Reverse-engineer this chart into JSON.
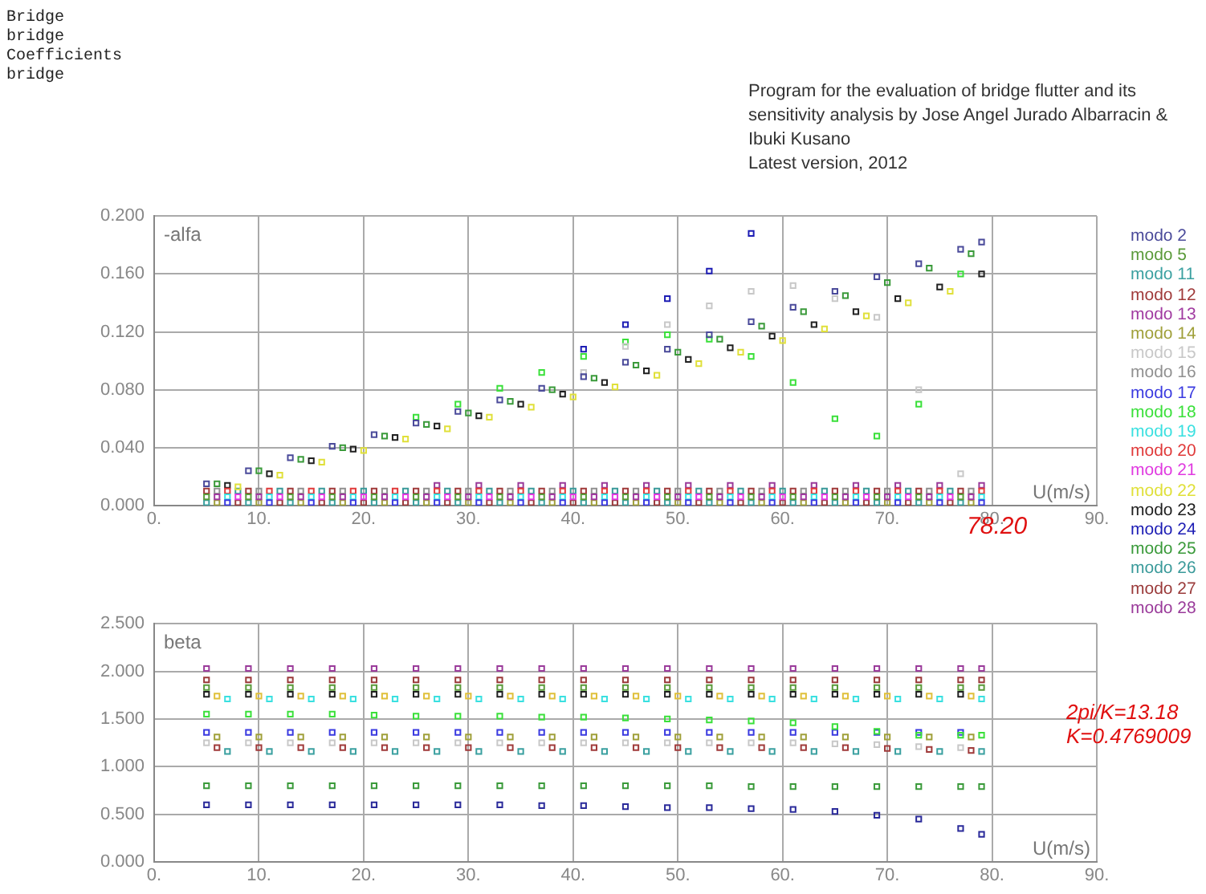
{
  "chart_data": [
    {
      "type": "scatter",
      "title": "Program for the evaluation of bridge flutter and its sensitivity analysis by Jose Angel Jurado Albarracin & Ibuki Kusano",
      "subtitle": "Latest version, 2012",
      "ylabel": "-alfa",
      "xlabel": "U(m/s)",
      "marker": "square",
      "grid": true,
      "legend": "right",
      "annotations": [
        "Bridge",
        "bridge",
        "Coefficients",
        "bridge",
        {
          "text": "78.20",
          "x": 78.2,
          "y": 0
        }
      ],
      "xlim": [
        0,
        90
      ],
      "xticks": [
        {
          "value": 0,
          "label": "0."
        },
        {
          "value": 10,
          "label": "10."
        },
        {
          "value": 20,
          "label": "20."
        },
        {
          "value": 30,
          "label": "30."
        },
        {
          "value": 40,
          "label": "40."
        },
        {
          "value": 50,
          "label": "50."
        },
        {
          "value": 60,
          "label": "60."
        },
        {
          "value": 70,
          "label": "70."
        },
        {
          "value": 80,
          "label": "80."
        },
        {
          "value": 90,
          "label": "90."
        }
      ],
      "ylim": [
        0,
        0.2
      ],
      "yticks": [
        {
          "value": 0,
          "label": "0.000"
        },
        {
          "value": 0.04,
          "label": "0.040"
        },
        {
          "value": 0.08,
          "label": "0.080"
        },
        {
          "value": 0.12,
          "label": "0.120"
        },
        {
          "value": 0.16,
          "label": "0.160"
        },
        {
          "value": 0.2,
          "label": "0.200"
        }
      ],
      "x": [
        5,
        9,
        13,
        17,
        21,
        25,
        29,
        33,
        37,
        41,
        45,
        49,
        53,
        57,
        61,
        65,
        69,
        73,
        77,
        79
      ],
      "series": [
        {
          "name": "modo 2",
          "color": "#4a4a9a",
          "values": [
            0.015,
            0.024,
            0.033,
            0.041,
            0.049,
            0.057,
            0.065,
            0.073,
            0.081,
            0.089,
            0.099,
            0.108,
            0.118,
            0.127,
            0.137,
            0.148,
            0.158,
            0.167,
            0.177,
            0.182
          ]
        },
        {
          "name": "modo 5",
          "color": "#5a9a3a",
          "x": [
            5,
            9,
            13,
            17,
            21,
            25,
            29,
            33,
            37,
            41,
            45,
            49,
            53,
            57,
            61,
            65,
            69,
            73,
            77
          ],
          "values": [
            0.006,
            0.006,
            0.006,
            0.006,
            0.006,
            0.006,
            0.006,
            0.006,
            0.006,
            0.006,
            0.006,
            0.006,
            0.006,
            0.006,
            0.006,
            0.006,
            0.006,
            0.006,
            0.006
          ]
        },
        {
          "name": "modo 11",
          "color": "#3aa0a0",
          "x": [
            5,
            9,
            13,
            17,
            21,
            25,
            29,
            33,
            37,
            41,
            45,
            49,
            53,
            57,
            61,
            65,
            69,
            73,
            77
          ],
          "values": [
            0.002,
            0.002,
            0.002,
            0.002,
            0.002,
            0.002,
            0.002,
            0.002,
            0.002,
            0.002,
            0.002,
            0.002,
            0.002,
            0.002,
            0.002,
            0.002,
            0.002,
            0.002,
            0.002
          ]
        },
        {
          "name": "modo 12",
          "color": "#a03a3a",
          "x": [
            5,
            9,
            13,
            17,
            21,
            25,
            29,
            33,
            37,
            41,
            45,
            49,
            53,
            57,
            61,
            65,
            69,
            73,
            77
          ],
          "values": [
            0.01,
            0.01,
            0.01,
            0.01,
            0.01,
            0.01,
            0.01,
            0.01,
            0.01,
            0.01,
            0.01,
            0.01,
            0.01,
            0.01,
            0.01,
            0.01,
            0.01,
            0.01,
            0.01
          ]
        },
        {
          "name": "modo 13",
          "color": "#a03aa0",
          "x": [
            6,
            10,
            14,
            18,
            22,
            26,
            30,
            34,
            38,
            42,
            46,
            50,
            54,
            58,
            62,
            66,
            70,
            74,
            78
          ],
          "values": [
            0.006,
            0.006,
            0.006,
            0.006,
            0.006,
            0.006,
            0.006,
            0.006,
            0.006,
            0.006,
            0.006,
            0.006,
            0.006,
            0.006,
            0.006,
            0.006,
            0.006,
            0.006,
            0.006
          ]
        },
        {
          "name": "modo 14",
          "color": "#a0a03a",
          "x": [
            6,
            10,
            14,
            18,
            22,
            26,
            30,
            34,
            38,
            42,
            46,
            50,
            54,
            58,
            62,
            66,
            70,
            74,
            78
          ],
          "values": [
            0.002,
            0.002,
            0.002,
            0.002,
            0.002,
            0.002,
            0.002,
            0.002,
            0.002,
            0.002,
            0.002,
            0.002,
            0.002,
            0.002,
            0.002,
            0.002,
            0.002,
            0.002,
            0.002
          ]
        },
        {
          "name": "modo 15",
          "color": "#c8c8c8",
          "values": [
            null,
            null,
            null,
            null,
            null,
            null,
            null,
            null,
            null,
            0.092,
            0.11,
            0.125,
            0.138,
            0.148,
            0.152,
            0.143,
            0.13,
            0.08,
            0.022,
            null
          ]
        },
        {
          "name": "modo 16",
          "color": "#909090",
          "x": [
            6,
            10,
            14,
            18,
            22,
            26,
            30,
            34,
            38,
            42,
            46,
            50,
            54,
            58,
            62,
            66,
            70,
            74,
            78
          ],
          "values": [
            0.01,
            0.01,
            0.01,
            0.01,
            0.01,
            0.01,
            0.01,
            0.01,
            0.01,
            0.01,
            0.01,
            0.01,
            0.01,
            0.01,
            0.01,
            0.01,
            0.01,
            0.01,
            0.01
          ]
        },
        {
          "name": "modo 17",
          "color": "#3a3ae0",
          "x": [
            7,
            11,
            15,
            19,
            23,
            27,
            31,
            35,
            39,
            43,
            47,
            51,
            55,
            59,
            63,
            67,
            71,
            75,
            79
          ],
          "values": [
            0.002,
            0.002,
            0.002,
            0.002,
            0.002,
            0.002,
            0.002,
            0.002,
            0.002,
            0.002,
            0.002,
            0.002,
            0.002,
            0.002,
            0.002,
            0.002,
            0.002,
            0.002,
            0.002
          ]
        },
        {
          "name": "modo 18",
          "color": "#3ae03a",
          "values": [
            null,
            null,
            null,
            null,
            null,
            0.061,
            0.07,
            0.081,
            0.092,
            0.103,
            0.113,
            0.118,
            0.115,
            0.103,
            0.085,
            0.06,
            0.048,
            0.07,
            0.16,
            null
          ]
        },
        {
          "name": "modo 19",
          "color": "#3ae0e0",
          "x": [
            7,
            11,
            15,
            19,
            23,
            27,
            31,
            35,
            39,
            43,
            47,
            51,
            55,
            59,
            63,
            67,
            71,
            75,
            79
          ],
          "values": [
            0.006,
            0.006,
            0.006,
            0.006,
            0.006,
            0.006,
            0.006,
            0.006,
            0.006,
            0.006,
            0.006,
            0.006,
            0.006,
            0.006,
            0.006,
            0.006,
            0.006,
            0.006,
            0.006
          ]
        },
        {
          "name": "modo 20",
          "color": "#e03a3a",
          "x": [
            7,
            11,
            15,
            19,
            23,
            27,
            31,
            35,
            39,
            43,
            47,
            51,
            55,
            59,
            63,
            67,
            71,
            75,
            79
          ],
          "values": [
            0.01,
            0.01,
            0.01,
            0.01,
            0.01,
            0.01,
            0.01,
            0.01,
            0.01,
            0.01,
            0.01,
            0.01,
            0.01,
            0.01,
            0.01,
            0.01,
            0.01,
            0.01,
            0.01
          ]
        },
        {
          "name": "modo 21",
          "color": "#e03ae0",
          "x": [
            8,
            12,
            16,
            20,
            24,
            28,
            32,
            36,
            40,
            44,
            48,
            52,
            56,
            60,
            64,
            68,
            72,
            76
          ],
          "values": [
            0.006,
            0.006,
            0.006,
            0.006,
            0.006,
            0.006,
            0.006,
            0.006,
            0.006,
            0.006,
            0.006,
            0.006,
            0.006,
            0.006,
            0.006,
            0.006,
            0.006,
            0.006
          ]
        },
        {
          "name": "modo 22",
          "color": "#e0e03a",
          "x": [
            8,
            12,
            16,
            20,
            24,
            28,
            32,
            36,
            40,
            44,
            48,
            52,
            56,
            60,
            64,
            68,
            72,
            76
          ],
          "values": [
            0.013,
            0.021,
            0.03,
            0.038,
            0.046,
            0.053,
            0.061,
            0.068,
            0.075,
            0.082,
            0.09,
            0.098,
            0.106,
            0.114,
            0.122,
            0.131,
            0.14,
            0.148
          ]
        },
        {
          "name": "modo 23",
          "color": "#202020",
          "x": [
            7,
            11,
            15,
            19,
            23,
            27,
            31,
            35,
            39,
            43,
            47,
            51,
            55,
            59,
            63,
            67,
            71,
            75,
            79
          ],
          "values": [
            0.014,
            0.022,
            0.031,
            0.039,
            0.047,
            0.055,
            0.062,
            0.07,
            0.077,
            0.085,
            0.093,
            0.101,
            0.109,
            0.117,
            0.125,
            0.134,
            0.143,
            0.151,
            0.16
          ]
        },
        {
          "name": "modo 24",
          "color": "#1c1cb4",
          "values": [
            null,
            null,
            null,
            null,
            null,
            null,
            null,
            null,
            null,
            0.108,
            0.125,
            0.143,
            0.162,
            0.188,
            null,
            null,
            null,
            null,
            null,
            null
          ]
        },
        {
          "name": "modo 25",
          "color": "#3a9a3a",
          "x": [
            6,
            10,
            14,
            18,
            22,
            26,
            30,
            34,
            38,
            42,
            46,
            50,
            54,
            58,
            62,
            66,
            70,
            74,
            78
          ],
          "values": [
            0.015,
            0.024,
            0.032,
            0.04,
            0.048,
            0.056,
            0.064,
            0.072,
            0.08,
            0.088,
            0.097,
            0.106,
            0.115,
            0.124,
            0.134,
            0.145,
            0.154,
            0.164,
            0.174
          ]
        },
        {
          "name": "modo 26",
          "color": "#3a9a9a",
          "x": [
            8,
            12,
            16,
            20,
            24,
            28,
            32,
            36,
            40,
            44,
            48,
            52,
            56,
            60,
            64,
            68,
            72,
            76
          ],
          "values": [
            0.01,
            0.01,
            0.01,
            0.01,
            0.01,
            0.01,
            0.01,
            0.01,
            0.01,
            0.01,
            0.01,
            0.01,
            0.01,
            0.01,
            0.01,
            0.01,
            0.01,
            0.01
          ]
        },
        {
          "name": "modo 27",
          "color": "#9a3a3a",
          "x": [
            8,
            12,
            16,
            20,
            24,
            28,
            32,
            36,
            40,
            44,
            48,
            52,
            56,
            60,
            64,
            68,
            72,
            76
          ],
          "values": [
            0.002,
            0.002,
            0.002,
            0.002,
            0.002,
            0.002,
            0.002,
            0.002,
            0.002,
            0.002,
            0.002,
            0.002,
            0.002,
            0.002,
            0.002,
            0.002,
            0.002,
            0.002
          ]
        },
        {
          "name": "modo 28",
          "color": "#9a3a9a",
          "x": [
            27,
            31,
            35,
            39,
            43,
            47,
            51,
            55,
            59,
            63,
            67,
            71,
            75,
            79
          ],
          "values": [
            0.014,
            0.014,
            0.014,
            0.014,
            0.014,
            0.014,
            0.014,
            0.014,
            0.014,
            0.014,
            0.014,
            0.014,
            0.014,
            0.014
          ]
        }
      ]
    },
    {
      "type": "scatter",
      "ylabel": "beta",
      "xlabel": "U(m/s)",
      "marker": "square",
      "grid": true,
      "annotations": [
        "2pi/K=13.18",
        "K=0.4769009"
      ],
      "xlim": [
        0,
        90
      ],
      "xticks": [
        {
          "value": 0,
          "label": "0."
        },
        {
          "value": 10,
          "label": "10."
        },
        {
          "value": 20,
          "label": "20."
        },
        {
          "value": 30,
          "label": "30."
        },
        {
          "value": 40,
          "label": "40."
        },
        {
          "value": 50,
          "label": "50."
        },
        {
          "value": 60,
          "label": "60."
        },
        {
          "value": 70,
          "label": "70."
        },
        {
          "value": 80,
          "label": "80."
        },
        {
          "value": 90,
          "label": "90."
        }
      ],
      "ylim": [
        0,
        2.5
      ],
      "yticks": [
        {
          "value": 0,
          "label": "0.000"
        },
        {
          "value": 0.5,
          "label": "0.500"
        },
        {
          "value": 1,
          "label": "1.000"
        },
        {
          "value": 1.5,
          "label": "1.500"
        },
        {
          "value": 2,
          "label": "2.000"
        },
        {
          "value": 2.5,
          "label": "2.500"
        }
      ],
      "x": [
        5,
        9,
        13,
        17,
        21,
        25,
        29,
        33,
        37,
        41,
        45,
        49,
        53,
        57,
        61,
        65,
        69,
        73,
        77,
        79
      ],
      "series": [
        {
          "color": "#9a3a9a",
          "values": [
            2.03,
            2.03,
            2.03,
            2.03,
            2.03,
            2.03,
            2.03,
            2.03,
            2.03,
            2.03,
            2.03,
            2.03,
            2.03,
            2.03,
            2.03,
            2.03,
            2.03,
            2.03,
            2.03,
            2.03
          ]
        },
        {
          "color": "#9a3a3a",
          "values": [
            1.91,
            1.91,
            1.91,
            1.91,
            1.91,
            1.91,
            1.91,
            1.91,
            1.91,
            1.91,
            1.91,
            1.91,
            1.91,
            1.91,
            1.91,
            1.91,
            1.91,
            1.91,
            1.91,
            1.91
          ]
        },
        {
          "color": "#5a9a3a",
          "values": [
            1.83,
            1.83,
            1.83,
            1.83,
            1.83,
            1.83,
            1.83,
            1.83,
            1.83,
            1.83,
            1.83,
            1.83,
            1.83,
            1.83,
            1.83,
            1.83,
            1.83,
            1.83,
            1.83,
            1.83
          ]
        },
        {
          "color": "#202020",
          "x": [
            5,
            9,
            13,
            17,
            21,
            25,
            29,
            33,
            37,
            41,
            45,
            49,
            53,
            57,
            61,
            65,
            69,
            73,
            77
          ],
          "values": [
            1.76,
            1.76,
            1.76,
            1.76,
            1.76,
            1.76,
            1.76,
            1.76,
            1.76,
            1.76,
            1.76,
            1.76,
            1.76,
            1.76,
            1.76,
            1.76,
            1.76,
            1.76,
            1.76
          ]
        },
        {
          "color": "#e0c03a",
          "x": [
            6,
            10,
            14,
            18,
            22,
            26,
            30,
            34,
            38,
            42,
            46,
            50,
            54,
            58,
            62,
            66,
            70,
            74,
            78
          ],
          "values": [
            1.74,
            1.74,
            1.74,
            1.74,
            1.74,
            1.74,
            1.74,
            1.74,
            1.74,
            1.74,
            1.74,
            1.74,
            1.74,
            1.74,
            1.74,
            1.74,
            1.74,
            1.74,
            1.74
          ]
        },
        {
          "color": "#3ae0e0",
          "x": [
            7,
            11,
            15,
            19,
            23,
            27,
            31,
            35,
            39,
            43,
            47,
            51,
            55,
            59,
            63,
            67,
            71,
            75,
            79
          ],
          "values": [
            1.71,
            1.71,
            1.71,
            1.71,
            1.71,
            1.71,
            1.71,
            1.71,
            1.71,
            1.71,
            1.71,
            1.71,
            1.71,
            1.71,
            1.71,
            1.71,
            1.71,
            1.71,
            1.71
          ]
        },
        {
          "color": "#3ae03a",
          "values": [
            1.55,
            1.55,
            1.55,
            1.55,
            1.54,
            1.53,
            1.53,
            1.53,
            1.52,
            1.52,
            1.51,
            1.5,
            1.49,
            1.48,
            1.46,
            1.42,
            1.37,
            1.33,
            1.33,
            1.33
          ]
        },
        {
          "color": "#3a3ae0",
          "x": [
            5,
            9,
            13,
            17,
            21,
            25,
            29,
            33,
            37,
            41,
            45,
            49,
            53,
            57,
            61,
            65,
            69,
            73,
            77
          ],
          "values": [
            1.36,
            1.36,
            1.36,
            1.36,
            1.36,
            1.36,
            1.36,
            1.36,
            1.36,
            1.36,
            1.36,
            1.36,
            1.36,
            1.36,
            1.36,
            1.36,
            1.36,
            1.36,
            1.36
          ]
        },
        {
          "color": "#a0a03a",
          "x": [
            6,
            10,
            14,
            18,
            22,
            26,
            30,
            34,
            38,
            42,
            46,
            50,
            54,
            58,
            62,
            66,
            70,
            74,
            78
          ],
          "values": [
            1.31,
            1.31,
            1.31,
            1.31,
            1.31,
            1.31,
            1.31,
            1.31,
            1.31,
            1.31,
            1.31,
            1.31,
            1.31,
            1.31,
            1.31,
            1.31,
            1.31,
            1.31,
            1.31
          ]
        },
        {
          "color": "#c8c8c8",
          "x": [
            5,
            9,
            13,
            17,
            21,
            25,
            29,
            33,
            37,
            41,
            45,
            49,
            53,
            57,
            61,
            65,
            69,
            73,
            77
          ],
          "values": [
            1.25,
            1.25,
            1.25,
            1.25,
            1.25,
            1.25,
            1.25,
            1.25,
            1.25,
            1.25,
            1.25,
            1.25,
            1.25,
            1.25,
            1.25,
            1.24,
            1.23,
            1.21,
            1.2
          ]
        },
        {
          "color": "#a03a3a",
          "x": [
            6,
            10,
            14,
            18,
            22,
            26,
            30,
            34,
            38,
            42,
            46,
            50,
            54,
            58,
            62,
            66,
            70,
            74,
            78
          ],
          "values": [
            1.2,
            1.2,
            1.2,
            1.2,
            1.2,
            1.2,
            1.2,
            1.2,
            1.2,
            1.2,
            1.2,
            1.2,
            1.2,
            1.2,
            1.2,
            1.2,
            1.19,
            1.18,
            1.17
          ]
        },
        {
          "color": "#3aa0a0",
          "x": [
            7,
            11,
            15,
            19,
            23,
            27,
            31,
            35,
            39,
            43,
            47,
            51,
            55,
            59,
            63,
            67,
            71,
            75,
            79
          ],
          "values": [
            1.16,
            1.16,
            1.16,
            1.16,
            1.16,
            1.16,
            1.16,
            1.16,
            1.16,
            1.16,
            1.16,
            1.16,
            1.16,
            1.16,
            1.16,
            1.16,
            1.16,
            1.16,
            1.16
          ]
        },
        {
          "color": "#3a9a3a",
          "values": [
            0.8,
            0.8,
            0.8,
            0.8,
            0.8,
            0.8,
            0.8,
            0.8,
            0.8,
            0.8,
            0.8,
            0.8,
            0.8,
            0.79,
            0.79,
            0.79,
            0.79,
            0.79,
            0.79,
            0.79
          ]
        },
        {
          "color": "#2a2a9a",
          "values": [
            0.6,
            0.6,
            0.6,
            0.6,
            0.6,
            0.6,
            0.6,
            0.6,
            0.59,
            0.59,
            0.58,
            0.57,
            0.57,
            0.56,
            0.55,
            0.53,
            0.49,
            0.45,
            0.35,
            0.29
          ]
        }
      ]
    }
  ]
}
